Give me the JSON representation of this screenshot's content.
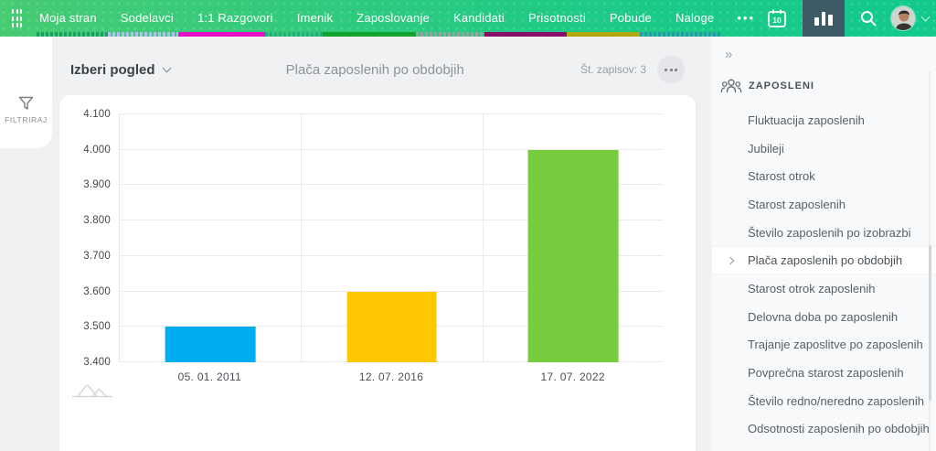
{
  "topbar": {
    "nav_items": [
      {
        "label": "Moja stran",
        "underline_color": "#1d9e66",
        "dotted": true
      },
      {
        "label": "Sodelavci",
        "underline_color": "#b7bcf5",
        "dotted": true
      },
      {
        "label": "1:1 Razgovori",
        "underline_color": "#e60fc6",
        "dotted": false
      },
      {
        "label": "Imenik",
        "underline_color": "#22b078",
        "dotted": true
      },
      {
        "label": "Zaposlovanje",
        "underline_color": "#12a42c",
        "dotted": false
      },
      {
        "label": "Kandidati",
        "underline_color": "#9aa0a4",
        "dotted": true
      },
      {
        "label": "Prisotnosti",
        "underline_color": "#8a0e67",
        "dotted": false
      },
      {
        "label": "Pobude",
        "underline_color": "#b2a70f",
        "dotted": false
      },
      {
        "label": "Naloge",
        "underline_color": "#2897ab",
        "dotted": true
      }
    ],
    "more_label": "•••",
    "calendar_badge": "10",
    "accent_gradient": [
      "#47cb73",
      "#12c98e"
    ],
    "active_icon_bg": "#3d5a66"
  },
  "filter_rail": {
    "label": "FILTRIRAJ"
  },
  "view_header": {
    "select_view_label": "Izberi pogled",
    "title": "Plača zaposlenih po obdobjih",
    "records_label": "Št. zapisov: 3"
  },
  "chart_data": {
    "type": "bar",
    "title": "Plača zaposlenih po obdobjih",
    "categories": [
      "05. 01. 2011",
      "12. 07. 2016",
      "17. 07. 2022"
    ],
    "values": [
      3500,
      3600,
      4000
    ],
    "bar_colors": [
      "#00aeef",
      "#ffc702",
      "#75cd3d"
    ],
    "ylim": [
      3400,
      4100
    ],
    "ytick_step": 100,
    "ytick_labels": [
      "3.400",
      "3.500",
      "3.600",
      "3.700",
      "3.800",
      "3.900",
      "4.000",
      "4.100"
    ],
    "xlabel": "",
    "ylabel": "",
    "grid": true,
    "legend": false
  },
  "sidebar": {
    "collapse_icon": "»",
    "section_title": "ZAPOSLENI",
    "selected_index": 5,
    "items": [
      "Fluktuacija zaposlenih",
      "Jubileji",
      "Starost otrok",
      "Starost zaposlenih",
      "Število zaposlenih po izobrazbi",
      "Plača zaposlenih po obdobjih",
      "Starost otrok zaposlenih",
      "Delovna doba po zaposlenih",
      "Trajanje zaposlitve po zaposlenih",
      "Povprečna starost zaposlenih",
      "Število redno/neredno zaposlenih",
      "Odsotnosti zaposlenih po obdobjih"
    ]
  }
}
